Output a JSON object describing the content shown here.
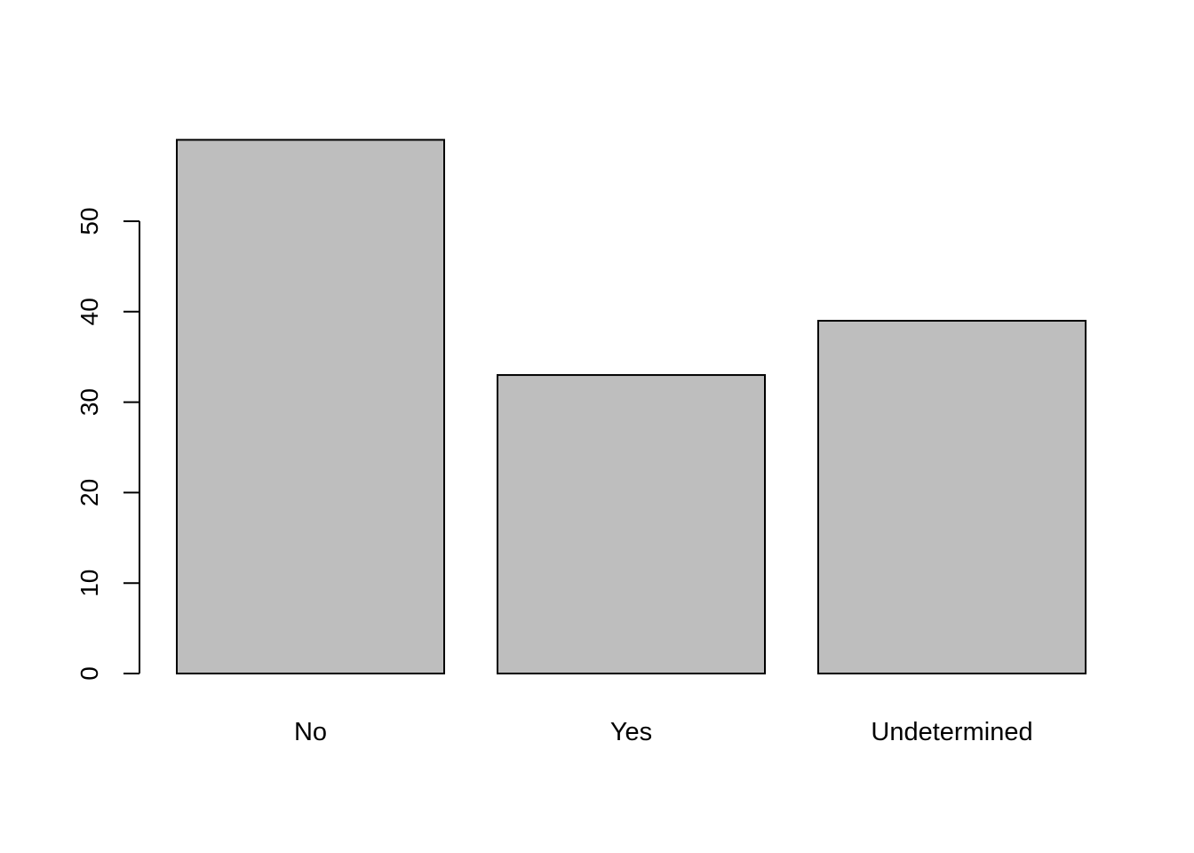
{
  "chart_data": {
    "type": "bar",
    "categories": [
      "No",
      "Yes",
      "Undetermined"
    ],
    "values": [
      59,
      33,
      39
    ],
    "title": "",
    "xlabel": "",
    "ylabel": "",
    "ylim": [
      0,
      59
    ],
    "yticks": [
      0,
      10,
      20,
      30,
      40,
      50
    ],
    "grid": false,
    "bar_color": "#bebebe",
    "bar_border_color": "#000000"
  }
}
